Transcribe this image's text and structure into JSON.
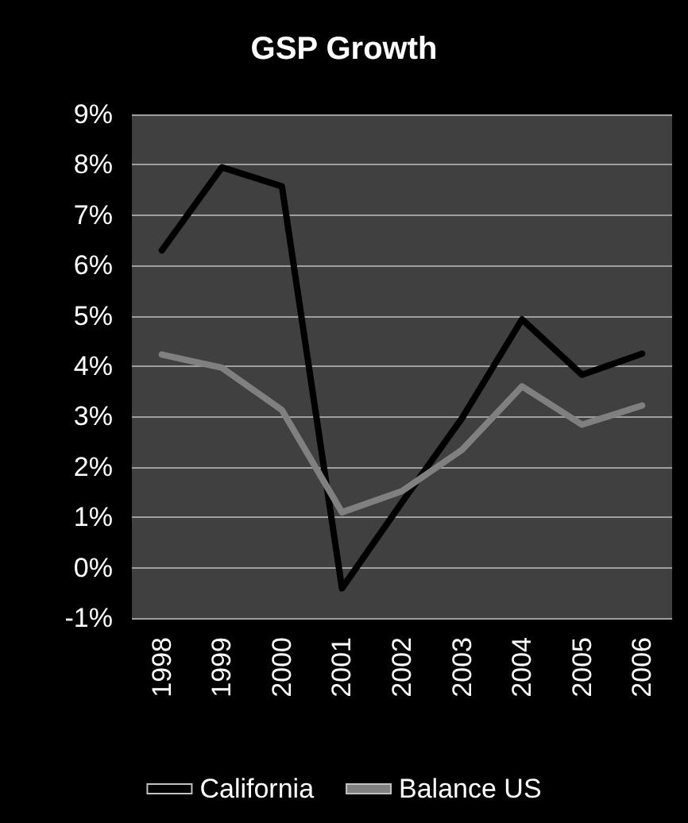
{
  "chart_data": {
    "type": "line",
    "title": "GSP Growth",
    "categories": [
      "1998",
      "1999",
      "2000",
      "2001",
      "2002",
      "2003",
      "2004",
      "2005",
      "2006"
    ],
    "series": [
      {
        "name": "California",
        "color": "#000000",
        "values": [
          6.3,
          7.95,
          7.57,
          -0.41,
          1.3,
          2.97,
          4.93,
          3.83,
          4.25
        ]
      },
      {
        "name": "Balance US",
        "color": "#808080",
        "values": [
          4.23,
          3.97,
          3.13,
          1.1,
          1.52,
          2.34,
          3.6,
          2.84,
          3.22
        ]
      }
    ],
    "ylim": [
      -1,
      9
    ],
    "yticks": [
      {
        "value": -1,
        "label": "-1%"
      },
      {
        "value": 0,
        "label": "0%"
      },
      {
        "value": 1,
        "label": "1%"
      },
      {
        "value": 2,
        "label": "2%"
      },
      {
        "value": 3,
        "label": "3%"
      },
      {
        "value": 4,
        "label": "4%"
      },
      {
        "value": 5,
        "label": "5%"
      },
      {
        "value": 6,
        "label": "6%"
      },
      {
        "value": 7,
        "label": "7%"
      },
      {
        "value": 8,
        "label": "8%"
      },
      {
        "value": 9,
        "label": "9%"
      }
    ],
    "grid": "y",
    "legend": "bottom",
    "marker": "none",
    "line_style": "solid"
  }
}
